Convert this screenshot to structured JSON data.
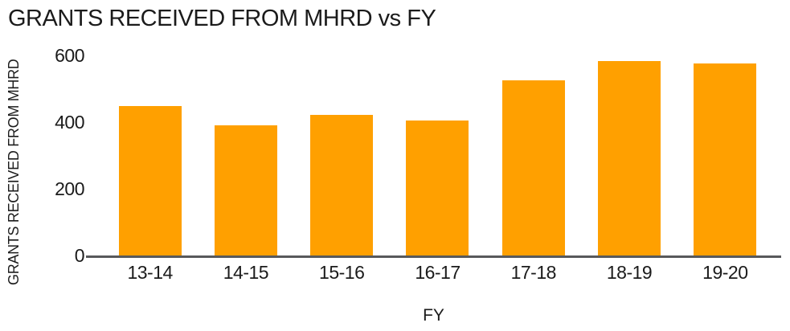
{
  "chart_data": {
    "type": "bar",
    "title": "GRANTS RECEIVED FROM MHRD vs FY",
    "xlabel": "FY",
    "ylabel": "GRANTS RECEIVED FROM MHRD",
    "categories": [
      "13-14",
      "14-15",
      "15-16",
      "16-17",
      "17-18",
      "18-19",
      "19-20"
    ],
    "values": [
      450,
      393,
      425,
      408,
      527,
      585,
      578
    ],
    "yticks": [
      0,
      200,
      400,
      600
    ],
    "ylim": [
      0,
      600
    ],
    "grid": "off",
    "legend": "none",
    "bar_color": "#FFA000",
    "axis_line_color": "#58595B",
    "text_color": "#1B1B1B"
  }
}
